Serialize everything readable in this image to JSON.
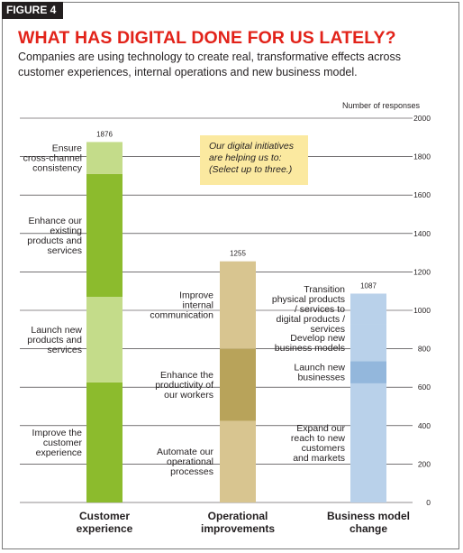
{
  "figure_label": "FIGURE 4",
  "title": "WHAT HAS DIGITAL DONE FOR US LATELY?",
  "subtitle": "Companies are using technology to create real, transformative effects across customer experiences, internal operations and new business model.",
  "callout": "Our digital initiatives\nare helping us to:\n(Select up to three.)",
  "colors": {
    "customer_dark": "#8cbb2d",
    "customer_light": "#c4dc8a",
    "operational_dark": "#b8a35a",
    "operational_light": "#d8c590",
    "business_dark": "#93b7dc",
    "business_light": "#b9d1ea"
  },
  "chart_data": {
    "type": "bar",
    "stacked": true,
    "ylabel": "Number of responses",
    "ylim": [
      0,
      2000
    ],
    "yticks": [
      0,
      200,
      400,
      600,
      800,
      1000,
      1200,
      1400,
      1600,
      1800,
      2000
    ],
    "grid": true,
    "categories": [
      "Customer\nexperience",
      "Operational\nimprovements",
      "Business model\nchange"
    ],
    "totals": [
      1876,
      1255,
      1087
    ],
    "segments": [
      [
        {
          "label": "Improve the\ncustomer\nexperience",
          "value": 625,
          "shade": "dark"
        },
        {
          "label": "Launch new\nproducts and\nservices",
          "value": 445,
          "shade": "light"
        },
        {
          "label": "Enhance our\nexisting\nproducts and\nservices",
          "value": 640,
          "shade": "dark"
        },
        {
          "label": "Ensure\ncross-channel\nconsistency",
          "value": 166,
          "shade": "light"
        }
      ],
      [
        {
          "label": "Automate our\noperational\nprocesses",
          "value": 425,
          "shade": "light"
        },
        {
          "label": "Enhance the\nproductivity of\nour workers",
          "value": 375,
          "shade": "dark"
        },
        {
          "label": "Improve\ninternal\ncommunication",
          "value": 455,
          "shade": "light"
        }
      ],
      [
        {
          "label": "Expand our\nreach to new\ncustomers\nand markets",
          "value": 620,
          "shade": "light"
        },
        {
          "label": "Launch new\nbusinesses",
          "value": 115,
          "shade": "dark"
        },
        {
          "label": "Develop new\nbusiness models",
          "value": 190,
          "shade": "light"
        },
        {
          "label": "Transition\nphysical products\n/ services to\ndigital products /\nservices",
          "value": 162,
          "shade": "light"
        }
      ]
    ]
  }
}
